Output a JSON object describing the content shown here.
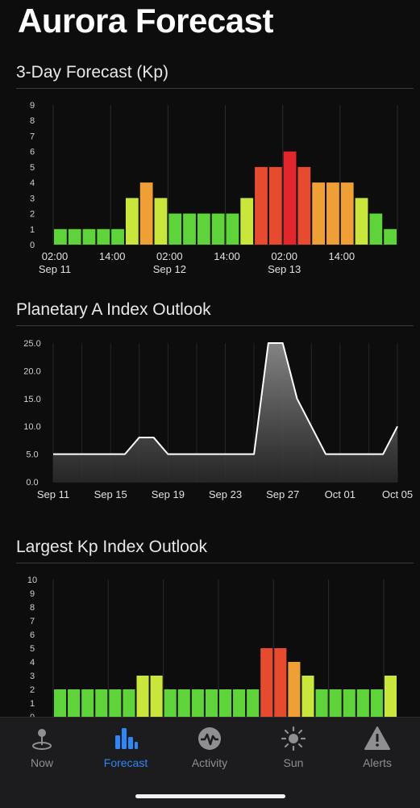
{
  "app": {
    "title": "Aurora Forecast"
  },
  "colors": {
    "kp0_2": "#5fd33a",
    "kp3": "#c9e63c",
    "kp4": "#ee9f36",
    "kp5": "#e64b30",
    "kp6": "#e2262b",
    "area_line": "#ffffff",
    "accent": "#2f86f5"
  },
  "sections": {
    "three_day": {
      "title": "3-Day Forecast (Kp)"
    },
    "a_index": {
      "title": "Planetary A Index Outlook"
    },
    "largest_kp": {
      "title": "Largest Kp Index Outlook"
    }
  },
  "chart_data": [
    {
      "type": "bar",
      "ylim": [
        0,
        9
      ],
      "y_ticks": [
        "0",
        "1",
        "2",
        "3",
        "4",
        "5",
        "6",
        "7",
        "8",
        "9"
      ],
      "x_tick_labels": [
        {
          "time": "02:00",
          "date": "Sep 11"
        },
        {
          "time": "14:00",
          "date": ""
        },
        {
          "time": "02:00",
          "date": "Sep 12"
        },
        {
          "time": "14:00",
          "date": ""
        },
        {
          "time": "02:00",
          "date": "Sep 13"
        },
        {
          "time": "14:00",
          "date": ""
        }
      ],
      "values": [
        1,
        1,
        1,
        1,
        1,
        3,
        4,
        3,
        2,
        2,
        2,
        2,
        2,
        3,
        5,
        5,
        6,
        5,
        4,
        4,
        4,
        3,
        2,
        1
      ],
      "grid": true
    },
    {
      "type": "area",
      "ylim": [
        0,
        25
      ],
      "y_ticks": [
        "0.0",
        "5.0",
        "10.0",
        "15.0",
        "20.0",
        "25.0"
      ],
      "x_tick_labels": [
        "Sep 11",
        "Sep 15",
        "Sep 19",
        "Sep 23",
        "Sep 27",
        "Oct 01",
        "Oct 05"
      ],
      "x": [
        "Sep 11",
        "Sep 12",
        "Sep 13",
        "Sep 14",
        "Sep 15",
        "Sep 16",
        "Sep 17",
        "Sep 18",
        "Sep 19",
        "Sep 20",
        "Sep 21",
        "Sep 22",
        "Sep 23",
        "Sep 24",
        "Sep 25",
        "Sep 26",
        "Sep 27",
        "Sep 28",
        "Sep 29",
        "Sep 30",
        "Oct 01",
        "Oct 02",
        "Oct 03",
        "Oct 04",
        "Oct 05"
      ],
      "values": [
        5,
        5,
        5,
        5,
        5,
        5,
        8,
        8,
        5,
        5,
        5,
        5,
        5,
        5,
        5,
        25,
        25,
        15,
        10,
        5,
        5,
        5,
        5,
        5,
        10
      ],
      "grid": true
    },
    {
      "type": "bar",
      "ylim": [
        0,
        10
      ],
      "y_ticks": [
        "0",
        "1",
        "2",
        "3",
        "4",
        "5",
        "6",
        "7",
        "8",
        "9",
        "10"
      ],
      "values": [
        2,
        2,
        2,
        2,
        2,
        2,
        3,
        3,
        2,
        2,
        2,
        2,
        2,
        2,
        2,
        5,
        5,
        4,
        3,
        2,
        2,
        2,
        2,
        2,
        3
      ],
      "grid": true
    }
  ],
  "tabs": [
    {
      "label": "Now",
      "icon": "map-pin-icon"
    },
    {
      "label": "Forecast",
      "icon": "bar-chart-icon"
    },
    {
      "label": "Activity",
      "icon": "activity-wave-icon"
    },
    {
      "label": "Sun",
      "icon": "sun-icon"
    },
    {
      "label": "Alerts",
      "icon": "warning-triangle-icon"
    }
  ],
  "active_tab": "Forecast"
}
